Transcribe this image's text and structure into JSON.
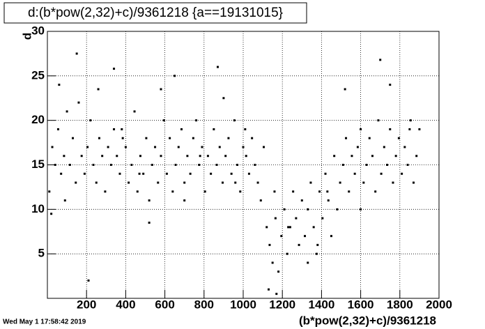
{
  "chart_data": {
    "type": "scatter",
    "title": "d:(b*pow(2,32)+c)/9361218 {a==19131015}",
    "x_label": "(b*pow(2,32)+c)/9361218",
    "y_label": "d",
    "footer": "Wed May  1 17:58:42 2019",
    "color": "#000000",
    "grid": true,
    "xlim": [
      0,
      2000
    ],
    "ylim": [
      0,
      30
    ],
    "xticks": [
      200,
      400,
      600,
      800,
      1000,
      1200,
      1400,
      1600,
      1800,
      2000
    ],
    "yticks": [
      5,
      10,
      15,
      20,
      25,
      30
    ],
    "x": [
      10,
      25,
      40,
      55,
      70,
      85,
      100,
      115,
      130,
      145,
      160,
      175,
      190,
      205,
      220,
      235,
      250,
      265,
      280,
      295,
      310,
      325,
      340,
      355,
      370,
      385,
      400,
      415,
      430,
      445,
      460,
      475,
      490,
      505,
      520,
      535,
      550,
      565,
      580,
      595,
      610,
      625,
      640,
      655,
      670,
      685,
      700,
      715,
      730,
      745,
      760,
      775,
      790,
      805,
      820,
      835,
      850,
      865,
      880,
      895,
      910,
      925,
      940,
      955,
      970,
      985,
      1000,
      1015,
      1030,
      1045,
      1060,
      1075,
      1090,
      1105,
      1120,
      1135,
      1150,
      1165,
      1180,
      1195,
      1210,
      1225,
      1240,
      1255,
      1270,
      1285,
      1300,
      1315,
      1330,
      1345,
      1360,
      1375,
      1390,
      1405,
      1420,
      1435,
      1450,
      1465,
      1480,
      1495,
      1510,
      1525,
      1540,
      1555,
      1570,
      1585,
      1600,
      1615,
      1630,
      1645,
      1660,
      1675,
      1690,
      1705,
      1720,
      1735,
      1750,
      1765,
      1780,
      1795,
      1810,
      1825,
      1840,
      1855,
      1870,
      1885,
      1900,
      20,
      60,
      90,
      150,
      210,
      260,
      340,
      380,
      470,
      520,
      580,
      650,
      700,
      780,
      870,
      900,
      960,
      1010,
      1130,
      1160,
      1170,
      1230,
      1330,
      1380,
      1430,
      1520,
      1600,
      1700,
      1750,
      1850
    ],
    "y": [
      12,
      17,
      15,
      19,
      14,
      16,
      21,
      15,
      18,
      13,
      22,
      16,
      14,
      17,
      20,
      15,
      13,
      18,
      16,
      12,
      17,
      15,
      19,
      16,
      14,
      18,
      17,
      13,
      15,
      21,
      12,
      16,
      14,
      18,
      11,
      15,
      17,
      13,
      16,
      20,
      14,
      18,
      12,
      15,
      17,
      19,
      13,
      16,
      14,
      18,
      20,
      15,
      17,
      12,
      16,
      14,
      19,
      15,
      17,
      13,
      16,
      18,
      14,
      20,
      15,
      12,
      17,
      16,
      14,
      18,
      15,
      13,
      11,
      17,
      8,
      6,
      4,
      9,
      3,
      7,
      10,
      5,
      8,
      12,
      9,
      6,
      11,
      7,
      10,
      13,
      8,
      5,
      12,
      9,
      14,
      11,
      7,
      16,
      10,
      13,
      15,
      18,
      12,
      16,
      14,
      17,
      19,
      13,
      15,
      18,
      16,
      12,
      20,
      14,
      17,
      15,
      19,
      13,
      16,
      18,
      14,
      17,
      15,
      20,
      13,
      16,
      19,
      9.5,
      24,
      11,
      27.5,
      2,
      23.5,
      25.8,
      19,
      14,
      8.5,
      23.5,
      25,
      11,
      16,
      26,
      22.5,
      13,
      19,
      1,
      12,
      0.5,
      8,
      4,
      6,
      12,
      23.5,
      10,
      26.8,
      24,
      19
    ]
  }
}
